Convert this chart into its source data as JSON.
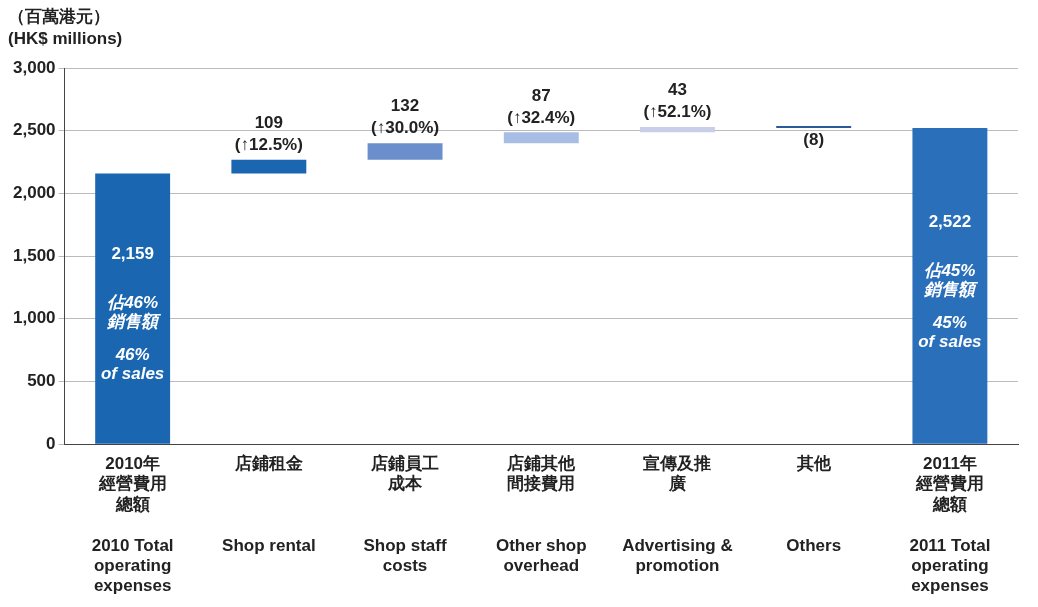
{
  "chart_data": {
    "type": "bar",
    "ylabel": "（百萬港元）\n(HK$ millions)",
    "categories": [
      "2010年經營費用總額\n2010 Total operating expenses",
      "店鋪租金\nShop rental",
      "店鋪員工成本\nShop staff costs",
      "店鋪其他間接費用\nOther shop overhead",
      "宣傳及推廣\nAdvertising & promotion",
      "其他\nOthers",
      "2011年經營費用總額\n2011 Total operating expenses"
    ],
    "values": [
      2159,
      109,
      132,
      87,
      43,
      -8,
      2522
    ],
    "base": [
      0,
      2159,
      2268,
      2400,
      2487,
      2530,
      0
    ],
    "colors": [
      "#1a66b0",
      "#1a66b0",
      "#6a8fcc",
      "#a7bde3",
      "#c9cfe9",
      "#2a5a9a",
      "#2a6fba"
    ],
    "value_labels": [
      "2,159",
      "109",
      "132",
      "87",
      "43",
      "(8)",
      "2,522"
    ],
    "ylim": [
      0,
      3000
    ],
    "yticks": [
      0,
      {
        "value": 500,
        "label": "500"
      },
      {
        "value": 1000,
        "label": "1,000"
      },
      {
        "value": 1500,
        "label": "1,500"
      },
      {
        "value": 2000,
        "label": "2,000"
      },
      {
        "value": 2500,
        "label": "2,500"
      },
      {
        "value": 3000,
        "label": "3,000"
      }
    ],
    "grid": "y",
    "annotations": [
      {
        "text": "(↑12.5%)",
        "x": "店鋪租金\nShop rental",
        "y": 2268
      },
      {
        "text": "(↑30.0%)",
        "x": "店鋪員工成本\nShop staff costs",
        "y": 2400
      },
      {
        "text": "(↑32.4%)",
        "x": "店鋪其他間接費用\nOther shop overhead",
        "y": 2487
      },
      {
        "text": "(↑52.1%)",
        "x": "宣傳及推廣\nAdvertising & promotion",
        "y": 2530
      },
      "佔46%\n銷售額",
      "46%\nof sales",
      "佔45%\n銷售額",
      "45%\nof sales"
    ]
  }
}
